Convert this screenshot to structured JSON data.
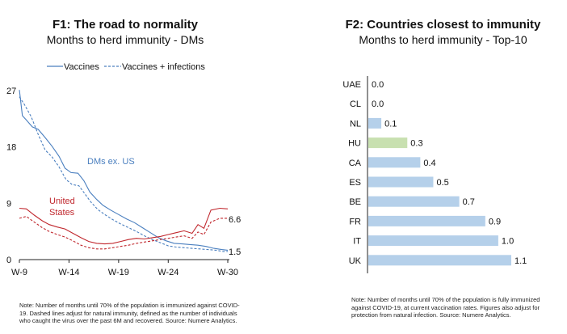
{
  "chart_data": [
    {
      "type": "line",
      "title": "F1: The road to normality",
      "subtitle": "Months to herd immunity - DMs",
      "legend": [
        "Vaccines",
        "Vaccines + infections"
      ],
      "legend_placement": "top",
      "x_ticks": [
        "W-9",
        "W-14",
        "W-19",
        "W-24",
        "W-30"
      ],
      "y_ticks": [
        "0",
        "9",
        "18",
        "27"
      ],
      "ylim": [
        0,
        27
      ],
      "x_range": [
        9,
        30
      ],
      "series": [
        {
          "name": "DMs ex. US",
          "style": "solid",
          "color": "#4a7fbf",
          "points": [
            [
              9,
              27.1
            ],
            [
              9.3,
              23
            ],
            [
              9.7,
              22.3
            ],
            [
              10.3,
              21.2
            ],
            [
              10.9,
              20.8
            ],
            [
              11.6,
              19.5
            ],
            [
              12.3,
              18.1
            ],
            [
              13,
              16.5
            ],
            [
              13.6,
              14.6
            ],
            [
              14.2,
              13.9
            ],
            [
              14.9,
              13.8
            ],
            [
              15.5,
              12.6
            ],
            [
              16.1,
              10.8
            ],
            [
              16.8,
              9.6
            ],
            [
              17.4,
              8.7
            ],
            [
              18.2,
              7.9
            ],
            [
              19,
              7.2
            ],
            [
              19.8,
              6.5
            ],
            [
              20.6,
              5.9
            ],
            [
              21.4,
              5.1
            ],
            [
              22.2,
              4.3
            ],
            [
              23,
              3.5
            ],
            [
              23.8,
              3.0
            ],
            [
              24.6,
              2.6
            ],
            [
              25.4,
              2.5
            ],
            [
              26.2,
              2.4
            ],
            [
              27,
              2.3
            ],
            [
              27.8,
              2.1
            ],
            [
              28.6,
              1.8
            ],
            [
              29.4,
              1.6
            ],
            [
              30,
              1.5
            ]
          ]
        },
        {
          "name": "DMs ex. US",
          "style": "dashed",
          "color": "#4a7fbf",
          "points": [
            [
              9,
              26
            ],
            [
              9.5,
              24.8
            ],
            [
              10.2,
              22.8
            ],
            [
              10.9,
              20
            ],
            [
              11.6,
              17.5
            ],
            [
              12.3,
              16.4
            ],
            [
              13,
              14.8
            ],
            [
              13.7,
              12.8
            ],
            [
              14.3,
              12
            ],
            [
              15,
              11.8
            ],
            [
              15.6,
              10.5
            ],
            [
              16.2,
              9.2
            ],
            [
              16.9,
              8
            ],
            [
              17.6,
              7.2
            ],
            [
              18.4,
              6.4
            ],
            [
              19.2,
              5.7
            ],
            [
              20,
              5.1
            ],
            [
              20.8,
              4.5
            ],
            [
              21.6,
              3.8
            ],
            [
              22.4,
              3.2
            ],
            [
              23.2,
              2.7
            ],
            [
              24,
              2.2
            ],
            [
              24.8,
              2.0
            ],
            [
              25.6,
              1.9
            ],
            [
              26.4,
              1.8
            ],
            [
              27.2,
              1.7
            ],
            [
              28,
              1.6
            ],
            [
              28.8,
              1.5
            ],
            [
              29.5,
              1.3
            ],
            [
              30,
              1.3
            ]
          ]
        },
        {
          "name": "United States",
          "style": "solid",
          "color": "#c0272d",
          "points": [
            [
              9,
              8.2
            ],
            [
              9.7,
              8.1
            ],
            [
              10.5,
              7.1
            ],
            [
              11.3,
              6.2
            ],
            [
              12,
              5.6
            ],
            [
              12.8,
              5.2
            ],
            [
              13.6,
              4.9
            ],
            [
              14.4,
              4.2
            ],
            [
              15.2,
              3.5
            ],
            [
              16,
              2.9
            ],
            [
              16.8,
              2.6
            ],
            [
              17.6,
              2.5
            ],
            [
              18.4,
              2.6
            ],
            [
              19.2,
              2.9
            ],
            [
              20,
              3.2
            ],
            [
              20.8,
              3.4
            ],
            [
              21.6,
              3.3
            ],
            [
              22.4,
              3.5
            ],
            [
              23.2,
              3.7
            ],
            [
              24,
              4.0
            ],
            [
              24.8,
              4.3
            ],
            [
              25.6,
              4.6
            ],
            [
              26.4,
              4.2
            ],
            [
              27,
              5.6
            ],
            [
              27.6,
              5.0
            ],
            [
              28.3,
              7.9
            ],
            [
              29.2,
              8.2
            ],
            [
              30,
              8.1
            ]
          ]
        },
        {
          "name": "United States",
          "style": "dashed",
          "color": "#c0272d",
          "points": [
            [
              9,
              6.6
            ],
            [
              9.7,
              6.9
            ],
            [
              10.5,
              6
            ],
            [
              11.3,
              5.1
            ],
            [
              12,
              4.5
            ],
            [
              12.8,
              4
            ],
            [
              13.6,
              3.6
            ],
            [
              14.4,
              3
            ],
            [
              15.2,
              2.3
            ],
            [
              16,
              1.9
            ],
            [
              16.8,
              1.7
            ],
            [
              17.6,
              1.7
            ],
            [
              18.4,
              1.9
            ],
            [
              19.2,
              2.1
            ],
            [
              20,
              2.3
            ],
            [
              20.8,
              2.6
            ],
            [
              21.6,
              2.8
            ],
            [
              22.4,
              3.0
            ],
            [
              23.2,
              3.2
            ],
            [
              24,
              3.4
            ],
            [
              24.8,
              3.6
            ],
            [
              25.6,
              3.8
            ],
            [
              26.4,
              3.4
            ],
            [
              27,
              4.4
            ],
            [
              27.6,
              4.0
            ],
            [
              28.3,
              6.0
            ],
            [
              29.2,
              6.6
            ],
            [
              30,
              6.6
            ]
          ]
        }
      ],
      "annotations": {
        "dms_label": "DMs ex. US",
        "us_label_line1": "United",
        "us_label_line2": "States",
        "end_value_dms": "1.5",
        "end_value_us": "6.6"
      },
      "colors": {
        "vaccines": "#4a7fbf",
        "us": "#c0272d"
      },
      "note": "Note: Number of months until 70% of the population is immunized against COVID-19. Dashed lines adjust for natural immunity, defined as the number of individuals who caught the virus over the past 6M and recovered. Source: Numere Analytics."
    },
    {
      "type": "bar",
      "orientation": "horizontal",
      "title": "F2: Countries closest to immunity",
      "subtitle": "Months to herd immunity - Top-10",
      "categories": [
        "UAE",
        "CL",
        "NL",
        "HU",
        "CA",
        "ES",
        "BE",
        "FR",
        "IT",
        "UK"
      ],
      "values": [
        0.0,
        0.0,
        0.1,
        0.3,
        0.4,
        0.5,
        0.7,
        0.9,
        1.0,
        1.1
      ],
      "value_labels": [
        "0.0",
        "0.0",
        "0.1",
        "0.3",
        "0.4",
        "0.5",
        "0.7",
        "0.9",
        "1.0",
        "1.1"
      ],
      "bar_colors": [
        "#b5d0ea",
        "#b5d0ea",
        "#b5d0ea",
        "#c8e0b0",
        "#b5d0ea",
        "#b5d0ea",
        "#b5d0ea",
        "#b5d0ea",
        "#b5d0ea",
        "#b5d0ea"
      ],
      "xlim": [
        0,
        1.1
      ],
      "note": "Note: Number of months until 70% of the population is fully immunized against COVID-19, at current vaccination rates. Figures also adjust for protection from natural infection. Source: Numere Analytics."
    }
  ]
}
